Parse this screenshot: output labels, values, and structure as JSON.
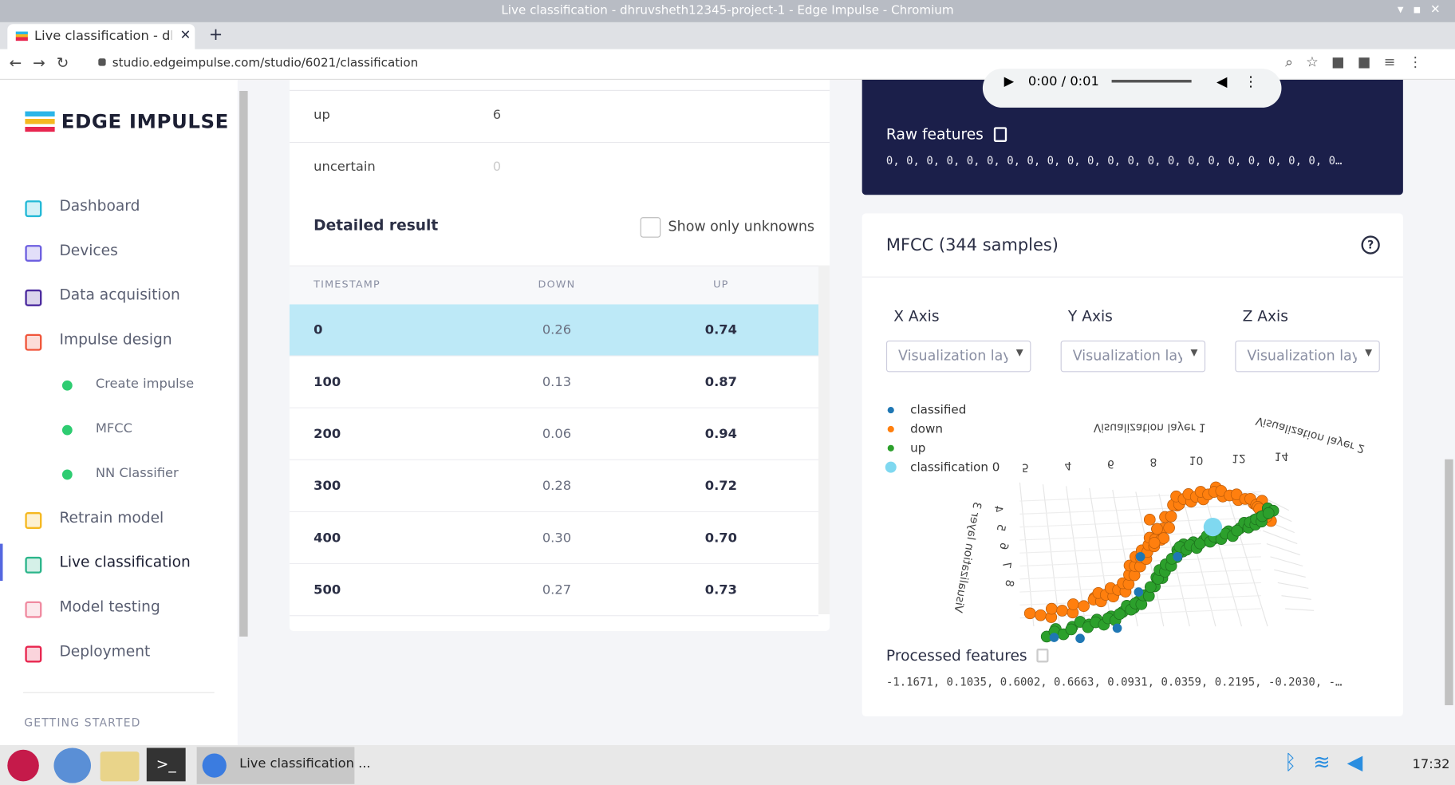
{
  "window": {
    "title": "Live classification - dhruvsheth12345-project-1 - Edge Impulse - Chromium"
  },
  "browser": {
    "tab_title": "Live classification - dhru",
    "url": "studio.edgeimpulse.com/studio/6021/classification"
  },
  "sidebar": {
    "logo": "EDGE IMPULSE",
    "nav": [
      {
        "label": "Dashboard",
        "level": 0,
        "color": "#22b8d6"
      },
      {
        "label": "Devices",
        "level": 0,
        "color": "#6d5fe0"
      },
      {
        "label": "Data acquisition",
        "level": 0,
        "color": "#4b2a9e"
      },
      {
        "label": "Impulse design",
        "level": 0,
        "color": "#f0553a"
      },
      {
        "label": "Create impulse",
        "level": 1,
        "color": "#2ecc71"
      },
      {
        "label": "MFCC",
        "level": 1,
        "color": "#2ecc71"
      },
      {
        "label": "NN Classifier",
        "level": 1,
        "color": "#2ecc71"
      },
      {
        "label": "Retrain model",
        "level": 0,
        "color": "#f5b820"
      },
      {
        "label": "Live classification",
        "level": 0,
        "color": "#2bb58a",
        "active": true
      },
      {
        "label": "Model testing",
        "level": 0,
        "color": "#f08aa0"
      },
      {
        "label": "Deployment",
        "level": 0,
        "color": "#e8264f"
      }
    ],
    "section": "GETTING STARTED"
  },
  "summary": {
    "rows": [
      [
        "up",
        "6"
      ],
      [
        "uncertain",
        "0"
      ]
    ]
  },
  "detailed": {
    "title": "Detailed result",
    "filter": "Show only unknowns",
    "columns": [
      "TIMESTAMP",
      "DOWN",
      "UP"
    ],
    "rows": [
      [
        "0",
        "0.26",
        "0.74"
      ],
      [
        "100",
        "0.13",
        "0.87"
      ],
      [
        "200",
        "0.06",
        "0.94"
      ],
      [
        "300",
        "0.28",
        "0.72"
      ],
      [
        "400",
        "0.30",
        "0.70"
      ],
      [
        "500",
        "0.27",
        "0.73"
      ]
    ]
  },
  "raw": {
    "player_time": "0:00 / 0:01",
    "title": "Raw features",
    "values": "0, 0, 0, 0, 0, 0, 0, 0, 0, 0, 0, 0, 0, 0, 0, 0, 0, 0, 0, 0, 0, 0, 0…"
  },
  "mfcc": {
    "title": "MFCC (344 samples)",
    "axes": [
      "X Axis",
      "Y Axis",
      "Z Axis"
    ],
    "select": "Visualization laye",
    "legend": [
      {
        "name": "classified",
        "color": "#1f77b4"
      },
      {
        "name": "down",
        "color": "#ff7f0e"
      },
      {
        "name": "up",
        "color": "#2ca02c"
      },
      {
        "name": "classification 0",
        "color": "#7fd8f0"
      }
    ],
    "axis_titles": [
      "Visualization layer 1",
      "Visualization layer 2",
      "Visualization layer 3"
    ],
    "x_ticks": [
      "5",
      "4",
      "6",
      "8",
      "10",
      "12",
      "14"
    ],
    "z_ticks": [
      "4",
      "5",
      "6",
      "7",
      "8"
    ],
    "processed_title": "Processed features",
    "processed_values": "-1.1671, 0.1035, 0.6002, 0.6663, 0.0931, 0.0359, 0.2195, -0.2030, -…"
  },
  "taskbar": {
    "window": "Live classification ...",
    "clock": "17:32"
  }
}
